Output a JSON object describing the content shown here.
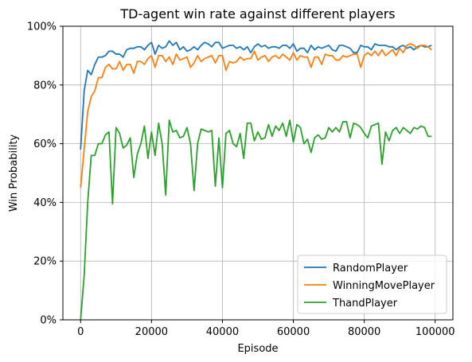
{
  "chart_data": {
    "type": "line",
    "title": "TD-agent win rate against different players",
    "xlabel": "Episode",
    "ylabel": "Win Probability",
    "xlim": [
      -5000,
      105000
    ],
    "ylim": [
      0,
      1
    ],
    "xticks": [
      0,
      20000,
      40000,
      60000,
      80000,
      100000
    ],
    "xtick_labels": [
      "0",
      "20000",
      "40000",
      "60000",
      "80000",
      "100000"
    ],
    "yticks": [
      0,
      0.2,
      0.4,
      0.6,
      0.8,
      1.0
    ],
    "ytick_labels": [
      "0%",
      "20%",
      "40%",
      "60%",
      "80%",
      "100%"
    ],
    "grid": true,
    "legend_position": "lower-right",
    "x": [
      0,
      1000,
      2000,
      3000,
      4000,
      5000,
      6000,
      7000,
      8000,
      9000,
      10000,
      11000,
      12000,
      13000,
      14000,
      15000,
      16000,
      17000,
      18000,
      19000,
      20000,
      21000,
      22000,
      23000,
      24000,
      25000,
      26000,
      27000,
      28000,
      29000,
      30000,
      31000,
      32000,
      33000,
      34000,
      35000,
      36000,
      37000,
      38000,
      39000,
      40000,
      41000,
      42000,
      43000,
      44000,
      45000,
      46000,
      47000,
      48000,
      49000,
      50000,
      51000,
      52000,
      53000,
      54000,
      55000,
      56000,
      57000,
      58000,
      59000,
      60000,
      61000,
      62000,
      63000,
      64000,
      65000,
      66000,
      67000,
      68000,
      69000,
      70000,
      71000,
      72000,
      73000,
      74000,
      75000,
      76000,
      77000,
      78000,
      79000,
      80000,
      81000,
      82000,
      83000,
      84000,
      85000,
      86000,
      87000,
      88000,
      89000,
      90000,
      91000,
      92000,
      93000,
      94000,
      95000,
      96000,
      97000,
      98000,
      99000
    ],
    "series": [
      {
        "name": "RandomPlayer",
        "color": "#1f77b4",
        "values": [
          0.58,
          0.78,
          0.85,
          0.835,
          0.87,
          0.895,
          0.895,
          0.9,
          0.915,
          0.915,
          0.905,
          0.905,
          0.895,
          0.92,
          0.925,
          0.925,
          0.93,
          0.93,
          0.92,
          0.935,
          0.945,
          0.905,
          0.935,
          0.925,
          0.93,
          0.95,
          0.935,
          0.945,
          0.92,
          0.93,
          0.915,
          0.92,
          0.93,
          0.92,
          0.935,
          0.945,
          0.94,
          0.93,
          0.945,
          0.945,
          0.925,
          0.93,
          0.935,
          0.935,
          0.925,
          0.93,
          0.92,
          0.93,
          0.91,
          0.93,
          0.94,
          0.93,
          0.935,
          0.925,
          0.93,
          0.93,
          0.925,
          0.935,
          0.935,
          0.925,
          0.94,
          0.915,
          0.925,
          0.925,
          0.91,
          0.935,
          0.92,
          0.93,
          0.925,
          0.93,
          0.935,
          0.92,
          0.915,
          0.935,
          0.935,
          0.93,
          0.925,
          0.91,
          0.91,
          0.935,
          0.93,
          0.93,
          0.92,
          0.94,
          0.935,
          0.935,
          0.935,
          0.93,
          0.93,
          0.92,
          0.93,
          0.935,
          0.925,
          0.93,
          0.92,
          0.93,
          0.935,
          0.93,
          0.93,
          0.935
        ]
      },
      {
        "name": "WinningMovePlayer",
        "color": "#ff7f0e",
        "values": [
          0.45,
          0.58,
          0.71,
          0.76,
          0.78,
          0.825,
          0.825,
          0.86,
          0.87,
          0.855,
          0.855,
          0.88,
          0.85,
          0.87,
          0.87,
          0.84,
          0.88,
          0.88,
          0.87,
          0.89,
          0.9,
          0.86,
          0.9,
          0.9,
          0.88,
          0.895,
          0.87,
          0.905,
          0.885,
          0.89,
          0.895,
          0.86,
          0.875,
          0.9,
          0.88,
          0.89,
          0.895,
          0.9,
          0.875,
          0.9,
          0.9,
          0.85,
          0.88,
          0.875,
          0.88,
          0.895,
          0.885,
          0.89,
          0.89,
          0.915,
          0.885,
          0.895,
          0.9,
          0.88,
          0.895,
          0.9,
          0.89,
          0.905,
          0.895,
          0.885,
          0.91,
          0.885,
          0.9,
          0.895,
          0.895,
          0.86,
          0.895,
          0.895,
          0.87,
          0.905,
          0.9,
          0.9,
          0.885,
          0.885,
          0.9,
          0.895,
          0.9,
          0.905,
          0.905,
          0.86,
          0.9,
          0.91,
          0.9,
          0.915,
          0.9,
          0.92,
          0.9,
          0.91,
          0.92,
          0.9,
          0.925,
          0.91,
          0.935,
          0.94,
          0.935,
          0.925,
          0.935,
          0.935,
          0.93,
          0.92
        ]
      },
      {
        "name": "ThandPlayer",
        "color": "#2ca02c",
        "values": [
          0.0,
          0.15,
          0.4,
          0.56,
          0.56,
          0.6,
          0.6,
          0.63,
          0.64,
          0.395,
          0.655,
          0.635,
          0.585,
          0.595,
          0.62,
          0.485,
          0.565,
          0.6,
          0.66,
          0.55,
          0.64,
          0.56,
          0.67,
          0.6,
          0.425,
          0.68,
          0.64,
          0.645,
          0.62,
          0.625,
          0.655,
          0.6,
          0.44,
          0.6,
          0.65,
          0.645,
          0.64,
          0.645,
          0.455,
          0.62,
          0.45,
          0.635,
          0.645,
          0.6,
          0.59,
          0.635,
          0.55,
          0.67,
          0.67,
          0.61,
          0.64,
          0.615,
          0.62,
          0.665,
          0.625,
          0.66,
          0.645,
          0.67,
          0.625,
          0.68,
          0.605,
          0.665,
          0.655,
          0.6,
          0.615,
          0.57,
          0.62,
          0.63,
          0.615,
          0.62,
          0.655,
          0.64,
          0.655,
          0.64,
          0.675,
          0.675,
          0.62,
          0.67,
          0.665,
          0.655,
          0.635,
          0.62,
          0.66,
          0.665,
          0.67,
          0.53,
          0.64,
          0.61,
          0.645,
          0.655,
          0.635,
          0.655,
          0.645,
          0.635,
          0.655,
          0.65,
          0.66,
          0.655,
          0.625,
          0.625
        ]
      }
    ]
  }
}
